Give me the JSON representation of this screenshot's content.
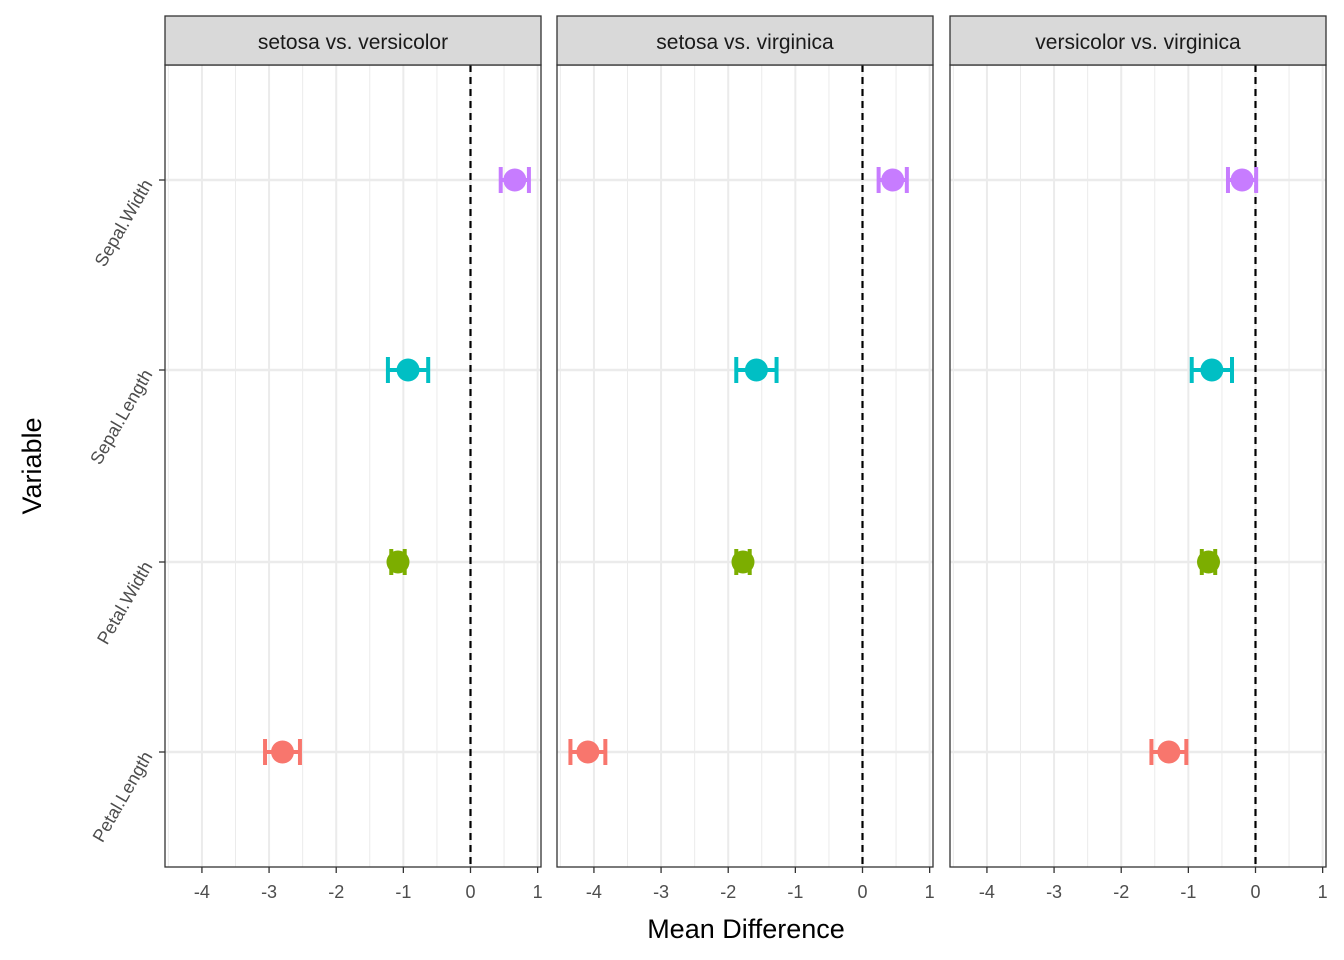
{
  "chart_data": {
    "type": "errorbar",
    "xlabel": "Mean Difference",
    "ylabel": "Variable",
    "xlim": [
      -4.55,
      1.05
    ],
    "xticks": [
      -4,
      -3,
      -2,
      -1,
      0,
      1
    ],
    "reference_line": 0,
    "grid": true,
    "legend": "none",
    "categories": [
      "Petal.Length",
      "Petal.Width",
      "Sepal.Length",
      "Sepal.Width"
    ],
    "colors": {
      "Petal.Length": "#F8766D",
      "Petal.Width": "#7CAE00",
      "Sepal.Length": "#00BFC4",
      "Sepal.Width": "#C77CFF"
    },
    "panels": [
      {
        "title": "setosa vs. versicolor",
        "points": [
          {
            "variable": "Petal.Length",
            "estimate": -2.8,
            "lower": -3.06,
            "upper": -2.54
          },
          {
            "variable": "Petal.Width",
            "estimate": -1.08,
            "lower": -1.18,
            "upper": -0.98
          },
          {
            "variable": "Sepal.Length",
            "estimate": -0.93,
            "lower": -1.23,
            "upper": -0.63
          },
          {
            "variable": "Sepal.Width",
            "estimate": 0.66,
            "lower": 0.45,
            "upper": 0.87
          }
        ]
      },
      {
        "title": "setosa vs. virginica",
        "points": [
          {
            "variable": "Petal.Length",
            "estimate": -4.09,
            "lower": -4.35,
            "upper": -3.83
          },
          {
            "variable": "Petal.Width",
            "estimate": -1.78,
            "lower": -1.88,
            "upper": -1.68
          },
          {
            "variable": "Sepal.Length",
            "estimate": -1.58,
            "lower": -1.88,
            "upper": -1.28
          },
          {
            "variable": "Sepal.Width",
            "estimate": 0.45,
            "lower": 0.24,
            "upper": 0.66
          }
        ]
      },
      {
        "title": "versicolor vs. virginica",
        "points": [
          {
            "variable": "Petal.Length",
            "estimate": -1.29,
            "lower": -1.55,
            "upper": -1.03
          },
          {
            "variable": "Petal.Width",
            "estimate": -0.7,
            "lower": -0.8,
            "upper": -0.6
          },
          {
            "variable": "Sepal.Length",
            "estimate": -0.65,
            "lower": -0.95,
            "upper": -0.35
          },
          {
            "variable": "Sepal.Width",
            "estimate": -0.2,
            "lower": -0.41,
            "upper": 0.01
          }
        ]
      }
    ]
  }
}
